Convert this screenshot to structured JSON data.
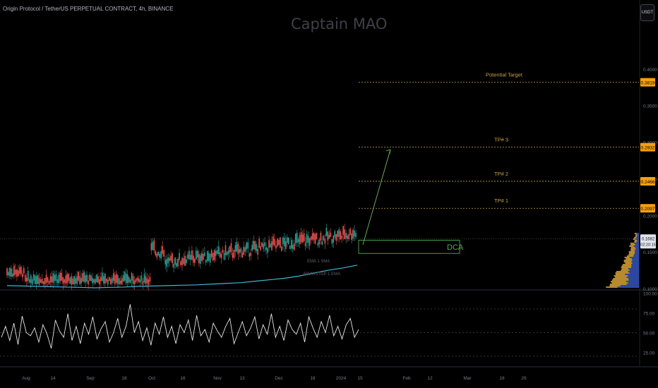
{
  "header": {
    "symbol_title": "Origin Protocol / TetherUS PERPETUAL CONTRACT, 4h, BINANCE",
    "watermark": "Captain MAO",
    "currency": "USDT"
  },
  "colors": {
    "background": "#000000",
    "candle_up": "#26a69a",
    "candle_down": "#ef5350",
    "ma_line": "#3fb6d0",
    "target_line": "#c8a548",
    "label_bg": "#f5a00b",
    "dca_box": "#4caf50",
    "projection_arrow": "#6aa85a",
    "rsi_line": "#e6e6e6",
    "volume_profile_blue": "#2d47a0",
    "volume_profile_gold": "#b88a2e"
  },
  "chart_data": [
    {
      "type": "candlestick",
      "title": "",
      "price_axis": {
        "ticks": [
          "0.4000",
          "0.3500",
          "0.3000",
          "0.2500",
          "0.2000",
          "0.1500",
          "0.1000"
        ],
        "ylim": [
          0.1,
          0.42
        ]
      },
      "time_axis": {
        "labels": [
          "Aug",
          "14",
          "Sep",
          "18",
          "Oct",
          "16",
          "Nov",
          "13",
          "Dec",
          "18",
          "2024",
          "15",
          "Feb",
          "12",
          "Mar",
          "18",
          "29"
        ]
      },
      "series": [
        {
          "name": "EMA",
          "values": [
            0.104,
            0.1035,
            0.103,
            0.1025,
            0.102,
            0.1015,
            0.101,
            0.1015,
            0.102,
            0.103,
            0.1035,
            0.104,
            0.1045,
            0.105,
            0.106,
            0.107,
            0.108,
            0.11,
            0.112,
            0.114,
            0.117,
            0.121,
            0.125,
            0.128,
            0.132
          ]
        }
      ],
      "levels": [
        {
          "label": "Potential Target",
          "price": 0.3819,
          "price_label": "0.3819"
        },
        {
          "label": "TP# 3",
          "price": 0.2932,
          "price_label": "0.2932"
        },
        {
          "label": "TP# 2",
          "price": 0.2466,
          "price_label": "0.2466"
        },
        {
          "label": "TP# 1",
          "price": 0.2097,
          "price_label": "0.2097"
        }
      ],
      "current_price": {
        "price": 0.1682,
        "value": "0.1682",
        "countdown": "02:20:15"
      },
      "dca_zone": {
        "label": "DCA",
        "top": 0.166,
        "bottom": 0.148
      },
      "projection_arrow": {
        "from_price": 0.16,
        "to_price": 0.29
      },
      "ma_labels": [
        "EMA 1 SMA",
        "60VWSTOP 1 EMA"
      ]
    },
    {
      "type": "line",
      "title": "",
      "y_ticks": [
        "100.00",
        "75.00",
        "50.00",
        "25.00"
      ],
      "ylim": [
        10,
        100
      ],
      "reference_levels": [
        80,
        50,
        20
      ],
      "series": [
        {
          "name": "RSI",
          "values": [
            44,
            58,
            40,
            62,
            35,
            71,
            50,
            46,
            56,
            38,
            60,
            48,
            30,
            66,
            52,
            44,
            74,
            40,
            58,
            36,
            62,
            48,
            70,
            42,
            55,
            64,
            38,
            50,
            68,
            44,
            58,
            86,
            50,
            64,
            40,
            56,
            34,
            62,
            48,
            70,
            44,
            58,
            36,
            60,
            50,
            66,
            40,
            72,
            46,
            54,
            38,
            62,
            52,
            44,
            58,
            68,
            36,
            50,
            64,
            46,
            56,
            70,
            42,
            60,
            48,
            74,
            44,
            58,
            40,
            66,
            54,
            48,
            62,
            38,
            70,
            56,
            44,
            64,
            50,
            72,
            46,
            58,
            42,
            60,
            68,
            44,
            54
          ]
        }
      ]
    }
  ]
}
